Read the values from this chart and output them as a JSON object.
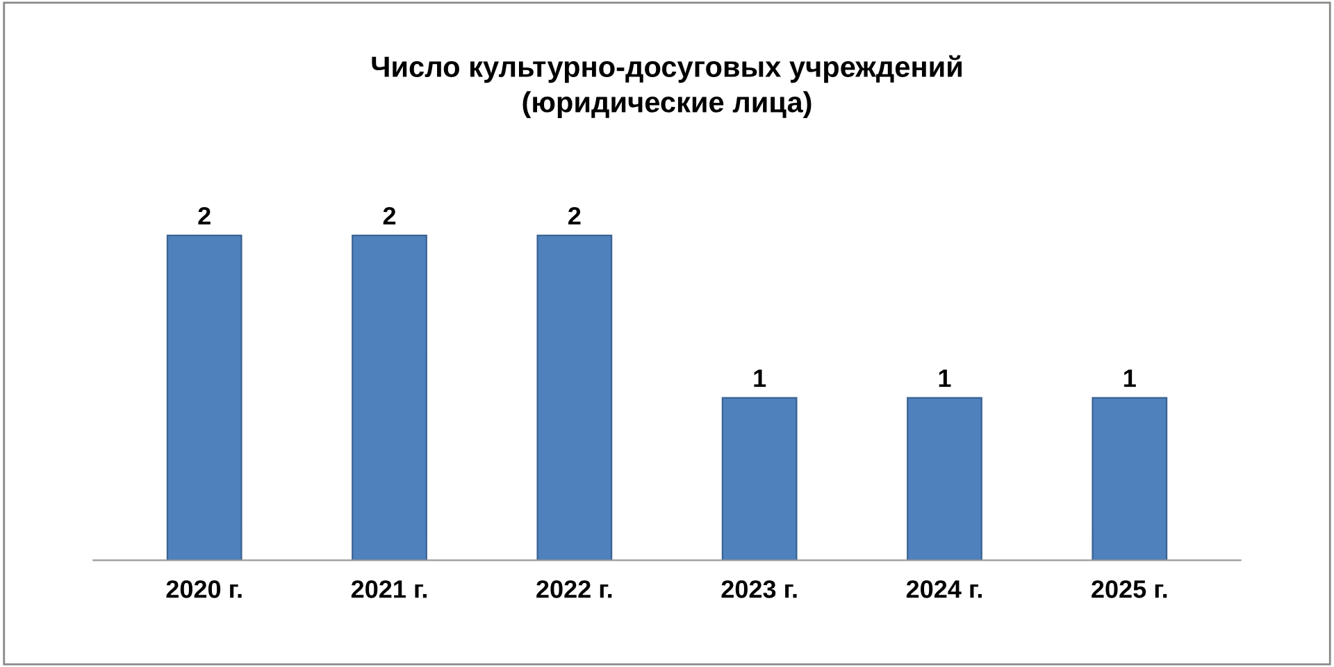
{
  "chart_data": {
    "type": "bar",
    "title": "Число культурно-досуговых учреждений\n(юридические лица)",
    "categories": [
      "2020 г.",
      "2021 г.",
      "2022 г.",
      "2023 г.",
      "2024 г.",
      "2025 г."
    ],
    "values": [
      2,
      2,
      2,
      1,
      1,
      1
    ],
    "color": "#4f81bd",
    "data_labels": true,
    "grid": false,
    "legend": false
  }
}
